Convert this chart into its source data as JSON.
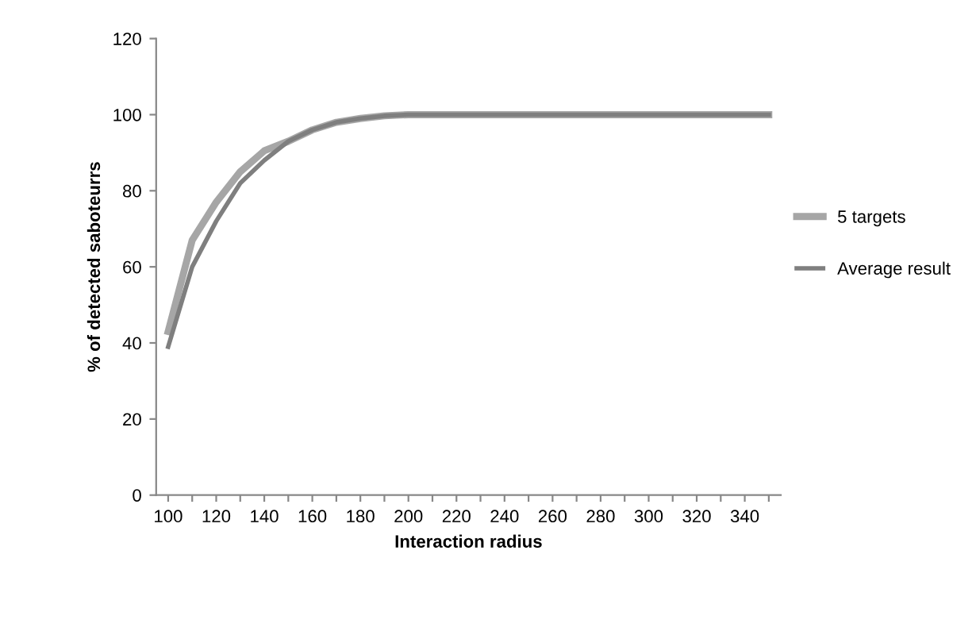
{
  "chart_data": {
    "type": "line",
    "xlabel": "Interaction radius",
    "ylabel": "% of detected saboteurrs",
    "categories": [
      "100",
      null,
      "120",
      null,
      "140",
      null,
      "160",
      null,
      "180",
      null,
      "200",
      null,
      "220",
      null,
      "240",
      null,
      "260",
      null,
      "280",
      null,
      "300",
      null,
      "320",
      null,
      "340",
      null
    ],
    "series": [
      {
        "name": "5 targets",
        "color": "#a6a6a6",
        "values": [
          43,
          67,
          77,
          85,
          90.5,
          93,
          96,
          98,
          99,
          99.7,
          100,
          100,
          100,
          100,
          100,
          100,
          100,
          100,
          100,
          100,
          100,
          100,
          100,
          100,
          100,
          100
        ]
      },
      {
        "name": "Average result",
        "color": "#7f7f7f",
        "values": [
          39,
          60,
          72,
          82,
          88,
          93,
          96,
          98,
          99,
          99.7,
          100,
          100,
          100,
          100,
          100,
          100,
          100,
          100,
          100,
          100,
          100,
          100,
          100,
          100,
          100,
          100
        ]
      }
    ],
    "ylim": [
      0,
      120
    ],
    "yticks": [
      0,
      20,
      40,
      60,
      80,
      100,
      120
    ],
    "grid": false,
    "legend": "right",
    "marker": "none",
    "line_style": "solid"
  }
}
